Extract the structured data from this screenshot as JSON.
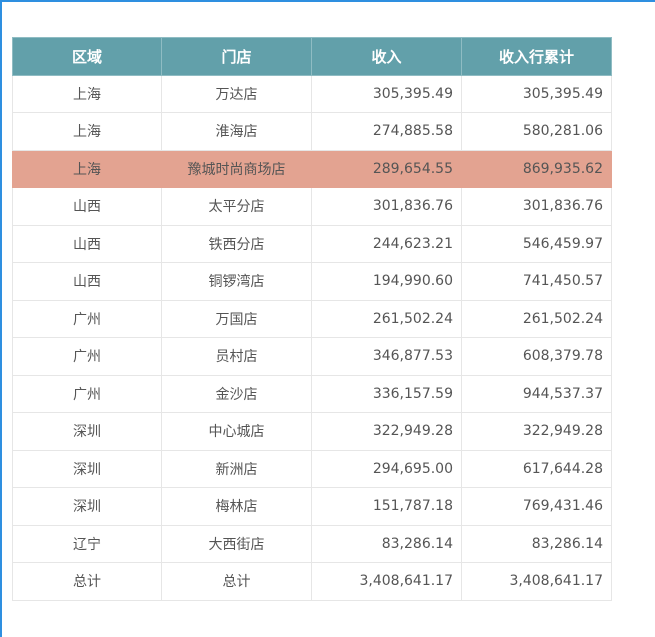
{
  "table": {
    "headers": [
      "区域",
      "门店",
      "收入",
      "收入行累计"
    ],
    "rows": [
      {
        "region": "上海",
        "store": "万达店",
        "income": "305,395.49",
        "cumulative": "305,395.49",
        "highlight": false
      },
      {
        "region": "上海",
        "store": "淮海店",
        "income": "274,885.58",
        "cumulative": "580,281.06",
        "highlight": false
      },
      {
        "region": "上海",
        "store": "豫城时尚商场店",
        "income": "289,654.55",
        "cumulative": "869,935.62",
        "highlight": true
      },
      {
        "region": "山西",
        "store": "太平分店",
        "income": "301,836.76",
        "cumulative": "301,836.76",
        "highlight": false
      },
      {
        "region": "山西",
        "store": "铁西分店",
        "income": "244,623.21",
        "cumulative": "546,459.97",
        "highlight": false
      },
      {
        "region": "山西",
        "store": "铜锣湾店",
        "income": "194,990.60",
        "cumulative": "741,450.57",
        "highlight": false
      },
      {
        "region": "广州",
        "store": "万国店",
        "income": "261,502.24",
        "cumulative": "261,502.24",
        "highlight": false
      },
      {
        "region": "广州",
        "store": "员村店",
        "income": "346,877.53",
        "cumulative": "608,379.78",
        "highlight": false
      },
      {
        "region": "广州",
        "store": "金沙店",
        "income": "336,157.59",
        "cumulative": "944,537.37",
        "highlight": false
      },
      {
        "region": "深圳",
        "store": "中心城店",
        "income": "322,949.28",
        "cumulative": "322,949.28",
        "highlight": false
      },
      {
        "region": "深圳",
        "store": "新洲店",
        "income": "294,695.00",
        "cumulative": "617,644.28",
        "highlight": false
      },
      {
        "region": "深圳",
        "store": "梅林店",
        "income": "151,787.18",
        "cumulative": "769,431.46",
        "highlight": false
      },
      {
        "region": "辽宁",
        "store": "大西街店",
        "income": "83,286.14",
        "cumulative": "83,286.14",
        "highlight": false
      },
      {
        "region": "总计",
        "store": "总计",
        "income": "3,408,641.17",
        "cumulative": "3,408,641.17",
        "highlight": false
      }
    ]
  },
  "colors": {
    "header_bg": "#62a0aa",
    "highlight_bg": "#e3a391",
    "frame_accent": "#2e8fe0"
  }
}
